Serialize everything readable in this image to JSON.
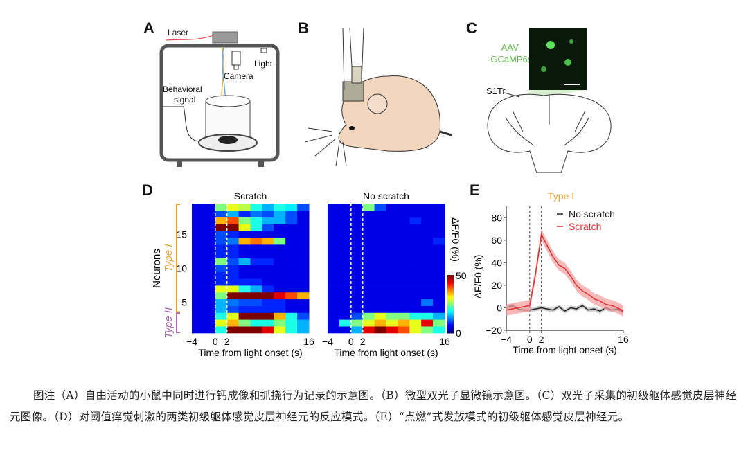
{
  "panels": {
    "a": {
      "label": "A",
      "laser": "Laser",
      "camera": "Camera",
      "light": "Light",
      "behavioral_signal_line1": "Behavioral",
      "behavioral_signal_line2": "signal"
    },
    "b": {
      "label": "B"
    },
    "c": {
      "label": "C",
      "virus_line1": "AAV",
      "virus_line2": "-GCaMP6s",
      "region": "S1Tr",
      "virus_color": "#5cb84a"
    },
    "d": {
      "label": "D"
    },
    "e": {
      "label": "E"
    }
  },
  "chart_data": [
    {
      "type": "heatmap",
      "panel": "D",
      "ylabel": "Neurons",
      "yticks": [
        5,
        10,
        15
      ],
      "xticks": [
        -4,
        0,
        2,
        16
      ],
      "xlabel": "Time from light onset (s)",
      "xlim": [
        -4,
        16
      ],
      "time_bins": [
        -4,
        -2,
        0,
        2,
        4,
        6,
        8,
        10,
        12,
        14
      ],
      "markers": [
        0,
        2
      ],
      "groups": [
        {
          "name": "Type I",
          "rows": [
            4,
            19
          ],
          "color": "#e8a33d"
        },
        {
          "name": "Type II",
          "rows": [
            1,
            3
          ],
          "color": "#a868b0"
        }
      ],
      "colorbar": {
        "label": "ΔF/F0 (%)",
        "min": 0,
        "max": 50,
        "ticks": [
          "0",
          "50"
        ],
        "colormap": "jet"
      },
      "maps": [
        {
          "title": "Scratch",
          "rows_bottom_to_top": [
            [
              5,
              5,
              20,
              50,
              50,
              50,
              45,
              30,
              20,
              15
            ],
            [
              5,
              5,
              30,
              35,
              25,
              20,
              20,
              25,
              20,
              15
            ],
            [
              5,
              5,
              20,
              30,
              50,
              50,
              50,
              35,
              20,
              10
            ],
            [
              5,
              5,
              15,
              10,
              8,
              8,
              8,
              8,
              5,
              5
            ],
            [
              5,
              5,
              15,
              12,
              10,
              10,
              8,
              8,
              5,
              5
            ],
            [
              5,
              5,
              25,
              50,
              50,
              50,
              50,
              45,
              40,
              35
            ],
            [
              5,
              5,
              30,
              30,
              20,
              15,
              8,
              5,
              5,
              5
            ],
            [
              5,
              5,
              8,
              8,
              8,
              8,
              5,
              5,
              5,
              5
            ],
            [
              5,
              5,
              8,
              8,
              5,
              5,
              5,
              5,
              5,
              5
            ],
            [
              5,
              5,
              10,
              8,
              5,
              5,
              5,
              5,
              5,
              5
            ],
            [
              5,
              5,
              25,
              10,
              15,
              8,
              8,
              5,
              5,
              5
            ],
            [
              5,
              5,
              8,
              8,
              5,
              5,
              5,
              5,
              5,
              5
            ],
            [
              5,
              5,
              8,
              8,
              5,
              5,
              5,
              5,
              5,
              5
            ],
            [
              5,
              5,
              10,
              12,
              35,
              38,
              35,
              25,
              5,
              5
            ],
            [
              5,
              5,
              10,
              8,
              5,
              5,
              5,
              5,
              5,
              5
            ],
            [
              5,
              5,
              50,
              50,
              30,
              20,
              10,
              5,
              5,
              5
            ],
            [
              5,
              5,
              35,
              40,
              25,
              20,
              15,
              15,
              10,
              5
            ],
            [
              5,
              5,
              10,
              15,
              8,
              12,
              10,
              15,
              10,
              5
            ],
            [
              5,
              5,
              25,
              30,
              28,
              20,
              15,
              20,
              18,
              10
            ]
          ]
        },
        {
          "title": "No scratch",
          "rows_bottom_to_top": [
            [
              5,
              5,
              15,
              45,
              50,
              45,
              40,
              30,
              25,
              20
            ],
            [
              5,
              20,
              25,
              30,
              35,
              30,
              35,
              30,
              45,
              25
            ],
            [
              5,
              5,
              10,
              25,
              30,
              25,
              25,
              20,
              20,
              15
            ],
            [
              5,
              5,
              5,
              5,
              5,
              5,
              5,
              5,
              5,
              5
            ],
            [
              5,
              5,
              5,
              5,
              5,
              5,
              5,
              5,
              12,
              5
            ],
            [
              5,
              5,
              5,
              5,
              5,
              5,
              5,
              5,
              5,
              5
            ],
            [
              5,
              5,
              5,
              5,
              5,
              5,
              5,
              5,
              5,
              5
            ],
            [
              5,
              5,
              5,
              5,
              5,
              5,
              5,
              5,
              5,
              5
            ],
            [
              5,
              5,
              5,
              5,
              5,
              5,
              5,
              5,
              5,
              5
            ],
            [
              5,
              5,
              5,
              5,
              5,
              5,
              5,
              5,
              5,
              5
            ],
            [
              5,
              5,
              5,
              5,
              5,
              5,
              5,
              5,
              5,
              5
            ],
            [
              5,
              5,
              5,
              5,
              5,
              5,
              5,
              5,
              5,
              5
            ],
            [
              5,
              5,
              5,
              5,
              5,
              5,
              5,
              5,
              5,
              5
            ],
            [
              5,
              5,
              5,
              5,
              5,
              5,
              5,
              5,
              5,
              8
            ],
            [
              5,
              5,
              5,
              5,
              5,
              5,
              5,
              5,
              5,
              5
            ],
            [
              5,
              5,
              5,
              5,
              5,
              5,
              5,
              5,
              5,
              5
            ],
            [
              5,
              5,
              5,
              5,
              5,
              5,
              5,
              8,
              5,
              5
            ],
            [
              5,
              5,
              5,
              5,
              5,
              5,
              5,
              5,
              5,
              5
            ],
            [
              5,
              5,
              5,
              25,
              10,
              5,
              5,
              5,
              5,
              5
            ]
          ]
        }
      ]
    },
    {
      "type": "line",
      "panel": "E",
      "title": "Type I",
      "title_color": "#e8a33d",
      "xlabel": "Time from light onset (s)",
      "ylabel": "ΔF/F0 (%)",
      "xlim": [
        -4,
        16
      ],
      "ylim": [
        -20,
        90
      ],
      "xticks": [
        -4,
        0,
        2,
        16
      ],
      "yticks": [
        -20,
        0,
        20,
        40,
        60,
        80
      ],
      "markers": [
        0,
        2
      ],
      "legend": "top-right",
      "x": [
        -4,
        -3,
        -2,
        -1,
        0,
        1,
        2,
        3,
        4,
        5,
        6,
        7,
        8,
        9,
        10,
        11,
        12,
        13,
        14,
        15,
        16
      ],
      "series": [
        {
          "name": "No scratch",
          "color": "#222222",
          "band_color": "#bbbbbb",
          "values": [
            0,
            2,
            -1,
            -2,
            -2,
            -1,
            0,
            -1,
            -2,
            1,
            -3,
            0,
            -1,
            2,
            -2,
            -1,
            -3,
            0,
            -2,
            -1,
            -4
          ],
          "sem": 2
        },
        {
          "name": "Scratch",
          "color": "#e03030",
          "band_color": "#f29a9a",
          "values": [
            -2,
            -1,
            0,
            1,
            2,
            30,
            65,
            55,
            45,
            38,
            35,
            28,
            20,
            15,
            12,
            8,
            6,
            3,
            2,
            0,
            -3
          ],
          "sem": 5
        }
      ]
    }
  ],
  "caption": "图注（A）自由活动的小鼠中同时进行钙成像和抓挠行为记录的示意图。（B）微型双光子显微镜示意图。（C）双光子采集的初级躯体感觉皮层神经元图像。（D）对阈值痒觉刺激的两类初级躯体感觉皮层神经元的反应模式。（E）“点燃”式发放模式的初级躯体感觉皮层神经元。"
}
